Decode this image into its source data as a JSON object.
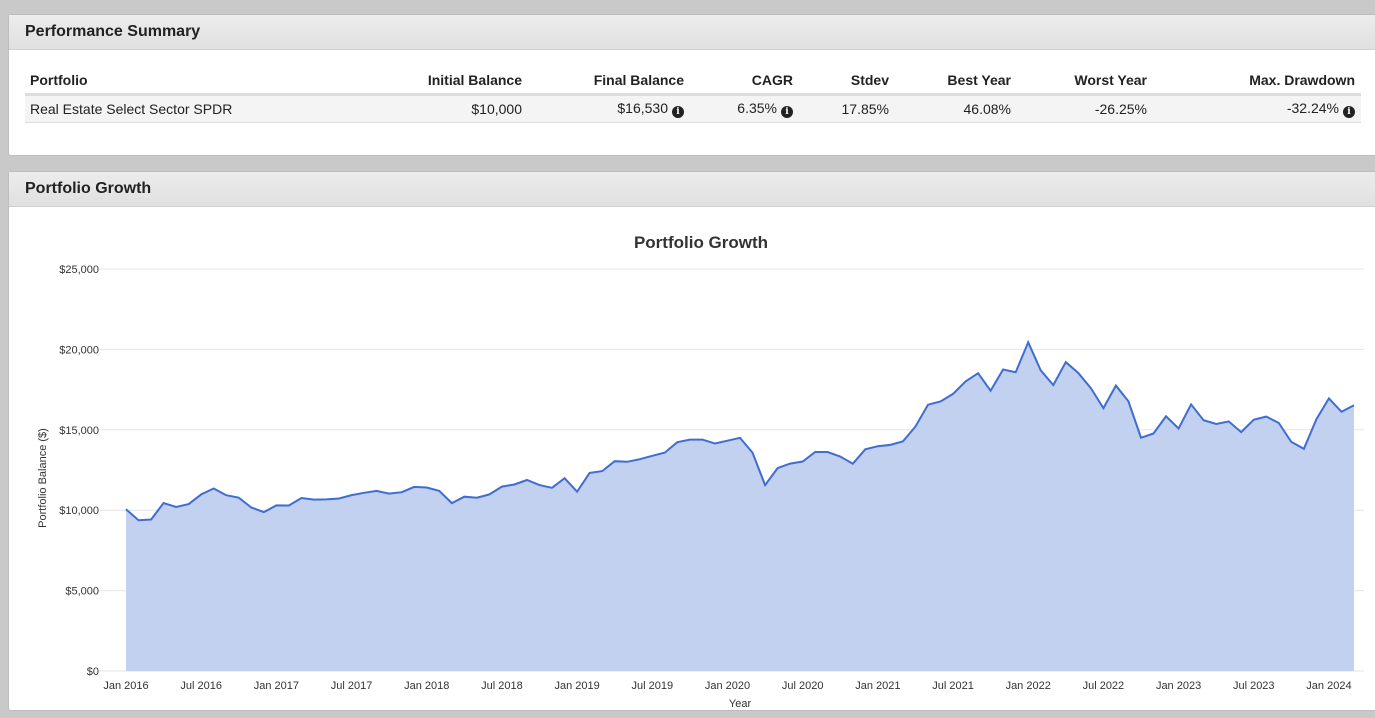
{
  "summary": {
    "title": "Performance Summary",
    "columns": [
      "Portfolio",
      "Initial Balance",
      "Final Balance",
      "CAGR",
      "Stdev",
      "Best Year",
      "Worst Year",
      "Max. Drawdown"
    ],
    "row": {
      "portfolio": "Real Estate Select Sector SPDR",
      "initial_balance": "$10,000",
      "final_balance": "$16,530",
      "cagr": "6.35%",
      "stdev": "17.85%",
      "best_year": "46.08%",
      "worst_year": "-26.25%",
      "max_drawdown": "-32.24%"
    },
    "info_icon": "info-circle-icon"
  },
  "growth": {
    "title": "Portfolio Growth"
  },
  "chart_data": {
    "type": "area",
    "title": "Portfolio Growth",
    "xlabel": "Year",
    "ylabel": "Portfolio Balance ($)",
    "ylim": [
      0,
      25000
    ],
    "y_ticks": [
      "$0",
      "$5,000",
      "$10,000",
      "$15,000",
      "$20,000",
      "$25,000"
    ],
    "x_ticks": [
      "Jan 2016",
      "Jul 2016",
      "Jan 2017",
      "Jul 2017",
      "Jan 2018",
      "Jul 2018",
      "Jan 2019",
      "Jul 2019",
      "Jan 2020",
      "Jul 2020",
      "Jan 2021",
      "Jul 2021",
      "Jan 2022",
      "Jul 2022",
      "Jan 2023",
      "Jul 2023",
      "Jan 2024"
    ],
    "x_start": "2016-01",
    "fill_color": "#c2d1ef",
    "line_color": "#3f6dd1",
    "grid": true,
    "series": [
      {
        "values": [
          10060,
          9380,
          9420,
          10450,
          10200,
          10380,
          10980,
          11350,
          10930,
          10780,
          10170,
          9880,
          10300,
          10290,
          10760,
          10660,
          10670,
          10730,
          10940,
          11080,
          11200,
          11030,
          11120,
          11450,
          11410,
          11200,
          10440,
          10840,
          10780,
          10980,
          11470,
          11600,
          11880,
          11560,
          11390,
          11990,
          11150,
          12320,
          12430,
          13050,
          13010,
          13170,
          13380,
          13580,
          14230,
          14390,
          14390,
          14150,
          14320,
          14500,
          13580,
          11560,
          12620,
          12900,
          13030,
          13620,
          13620,
          13340,
          12890,
          13790,
          13980,
          14060,
          14280,
          15200,
          16560,
          16760,
          17230,
          18010,
          18520,
          17430,
          18750,
          18580,
          20440,
          18700,
          17780,
          19210,
          18530,
          17590,
          16350,
          17750,
          16770,
          14510,
          14770,
          15840,
          15080,
          16580,
          15600,
          15360,
          15520,
          14860,
          15630,
          15820,
          15420,
          14250,
          13820,
          15660,
          16950,
          16120,
          16530
        ]
      }
    ]
  }
}
